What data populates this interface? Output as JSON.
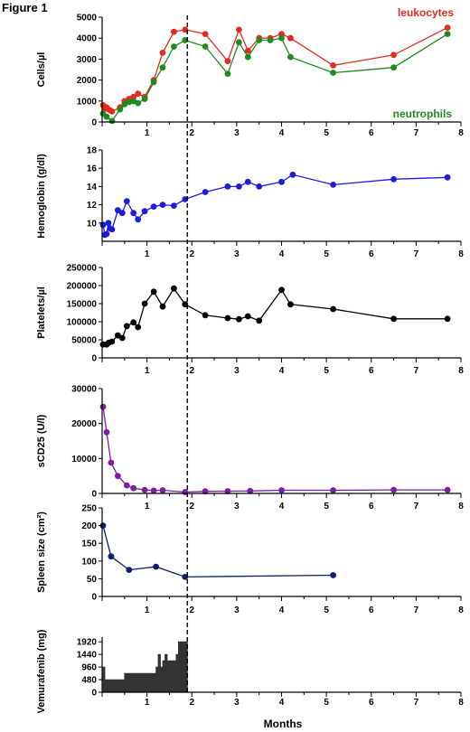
{
  "figure_title": "Figure 1",
  "xlabel": "Months",
  "marker_month": 1.9,
  "chart_data": [
    {
      "type": "line",
      "ylabel": "Cells/µl",
      "xlim": [
        0,
        8
      ],
      "ylim": [
        0,
        5000
      ],
      "yticks": [
        0,
        1000,
        2000,
        3000,
        4000,
        5000
      ],
      "xticks": [
        1,
        2,
        3,
        4,
        5,
        6,
        7,
        8
      ],
      "series": [
        {
          "name": "leukocytes",
          "color": "#e32b22",
          "x": [
            0.02,
            0.06,
            0.1,
            0.14,
            0.18,
            0.22,
            0.4,
            0.5,
            0.6,
            0.7,
            0.8,
            0.95,
            1.15,
            1.35,
            1.6,
            1.85,
            2.3,
            2.8,
            3.05,
            3.25,
            3.5,
            3.75,
            4.0,
            4.2,
            5.15,
            6.5,
            7.7
          ],
          "y": [
            800,
            650,
            700,
            600,
            550,
            500,
            700,
            1000,
            1100,
            1200,
            1350,
            1200,
            2000,
            3300,
            4300,
            4400,
            4200,
            2900,
            4400,
            3400,
            4000,
            4000,
            4200,
            4000,
            2700,
            3200,
            4500
          ]
        },
        {
          "name": "neutrophils",
          "color": "#1f8a1f",
          "x": [
            0.02,
            0.1,
            0.22,
            0.4,
            0.5,
            0.6,
            0.7,
            0.8,
            0.95,
            1.15,
            1.35,
            1.6,
            1.85,
            2.3,
            2.8,
            3.05,
            3.25,
            3.5,
            3.75,
            4.0,
            4.2,
            5.15,
            6.5,
            7.7
          ],
          "y": [
            400,
            250,
            50,
            600,
            850,
            950,
            1000,
            900,
            1100,
            1900,
            2600,
            3600,
            3900,
            3600,
            2300,
            3800,
            3100,
            3900,
            3900,
            4000,
            3100,
            2350,
            2600,
            4200
          ]
        }
      ]
    },
    {
      "type": "line",
      "ylabel": "Hemoglobin (g/dl)",
      "xlim": [
        0,
        8
      ],
      "ylim": [
        8,
        18
      ],
      "yticks": [
        10,
        12,
        14,
        16,
        18
      ],
      "xticks": [
        1,
        2,
        3,
        4,
        5,
        6,
        7,
        8
      ],
      "series": [
        {
          "name": "",
          "color": "#1c1cdc",
          "x": [
            0.02,
            0.06,
            0.1,
            0.14,
            0.18,
            0.22,
            0.35,
            0.45,
            0.55,
            0.7,
            0.8,
            0.95,
            1.15,
            1.35,
            1.6,
            1.85,
            2.3,
            2.8,
            3.05,
            3.25,
            3.5,
            4.0,
            4.25,
            5.15,
            6.5,
            7.7
          ],
          "y": [
            9.8,
            8.7,
            8.8,
            10.0,
            9.4,
            9.3,
            11.4,
            11.1,
            12.4,
            11.1,
            10.4,
            11.3,
            11.8,
            12.0,
            11.9,
            12.6,
            13.4,
            14.0,
            14.0,
            14.5,
            14.0,
            14.5,
            15.3,
            14.2,
            14.8,
            15.0
          ]
        }
      ]
    },
    {
      "type": "line",
      "ylabel": "Platelets/µl",
      "xlim": [
        0,
        8
      ],
      "ylim": [
        0,
        250000
      ],
      "yticks": [
        0,
        50000,
        100000,
        150000,
        200000,
        250000
      ],
      "xticks": [
        1,
        2,
        3,
        4,
        5,
        6,
        7,
        8
      ],
      "series": [
        {
          "name": "",
          "color": "#000000",
          "x": [
            0.02,
            0.1,
            0.15,
            0.22,
            0.35,
            0.45,
            0.55,
            0.7,
            0.8,
            0.95,
            1.15,
            1.35,
            1.6,
            1.85,
            2.3,
            2.8,
            3.05,
            3.25,
            3.5,
            4.0,
            4.2,
            5.15,
            6.5,
            7.7
          ],
          "y": [
            37000,
            37000,
            42000,
            45000,
            62000,
            55000,
            88000,
            98000,
            85000,
            150000,
            183000,
            142000,
            192000,
            148000,
            118000,
            110000,
            107000,
            115000,
            103000,
            188000,
            148000,
            135000,
            108000,
            108000
          ]
        }
      ]
    },
    {
      "type": "line",
      "ylabel": "sCD25 (U/l)",
      "xlim": [
        0,
        8
      ],
      "ylim": [
        0,
        30000
      ],
      "yticks": [
        0,
        10000,
        20000,
        30000
      ],
      "xticks": [
        1,
        2,
        3,
        4,
        5,
        6,
        7,
        8
      ],
      "series": [
        {
          "name": "",
          "color": "#7a1fa2",
          "x": [
            0.02,
            0.1,
            0.2,
            0.35,
            0.55,
            0.7,
            0.95,
            1.15,
            1.35,
            1.85,
            2.3,
            2.8,
            3.3,
            4.0,
            5.15,
            6.5,
            7.7
          ],
          "y": [
            24800,
            17500,
            8800,
            5000,
            2300,
            1500,
            1000,
            800,
            900,
            400,
            600,
            650,
            700,
            900,
            900,
            1000,
            1000
          ]
        }
      ]
    },
    {
      "type": "line",
      "ylabel": "Spleen size (cm²)",
      "xlim": [
        0,
        8
      ],
      "ylim": [
        0,
        250
      ],
      "yticks": [
        0,
        50,
        100,
        150,
        200,
        250
      ],
      "xticks": [
        1,
        2,
        3,
        4,
        5,
        6,
        7,
        8
      ],
      "series": [
        {
          "name": "",
          "color": "#0d1f6e",
          "x": [
            0.02,
            0.2,
            0.6,
            1.2,
            1.85,
            5.15
          ],
          "y": [
            200,
            113,
            75,
            84,
            55,
            60
          ]
        }
      ]
    },
    {
      "type": "area",
      "ylabel": "Vemurafenib (mg)",
      "xlim": [
        0,
        8
      ],
      "ylim": [
        0,
        2100
      ],
      "yticks": [
        0,
        480,
        960,
        1440,
        1920
      ],
      "xticks": [
        1,
        2,
        3,
        4,
        5,
        6,
        7,
        8
      ],
      "series": [
        {
          "name": "",
          "color": "#333333",
          "x": [
            0.0,
            0.02,
            0.02,
            0.06,
            0.06,
            0.5,
            0.5,
            1.2,
            1.2,
            1.25,
            1.25,
            1.3,
            1.3,
            1.35,
            1.35,
            1.4,
            1.4,
            1.45,
            1.45,
            1.65,
            1.65,
            1.7,
            1.7,
            1.9,
            1.9
          ],
          "y": [
            0,
            0,
            960,
            960,
            480,
            480,
            720,
            720,
            960,
            960,
            1440,
            1440,
            960,
            960,
            1200,
            1200,
            1440,
            1440,
            1200,
            1200,
            1440,
            1440,
            1920,
            1920,
            0
          ]
        }
      ]
    }
  ],
  "colors": {
    "axis": "#000000",
    "dashed_line": "#000000"
  }
}
